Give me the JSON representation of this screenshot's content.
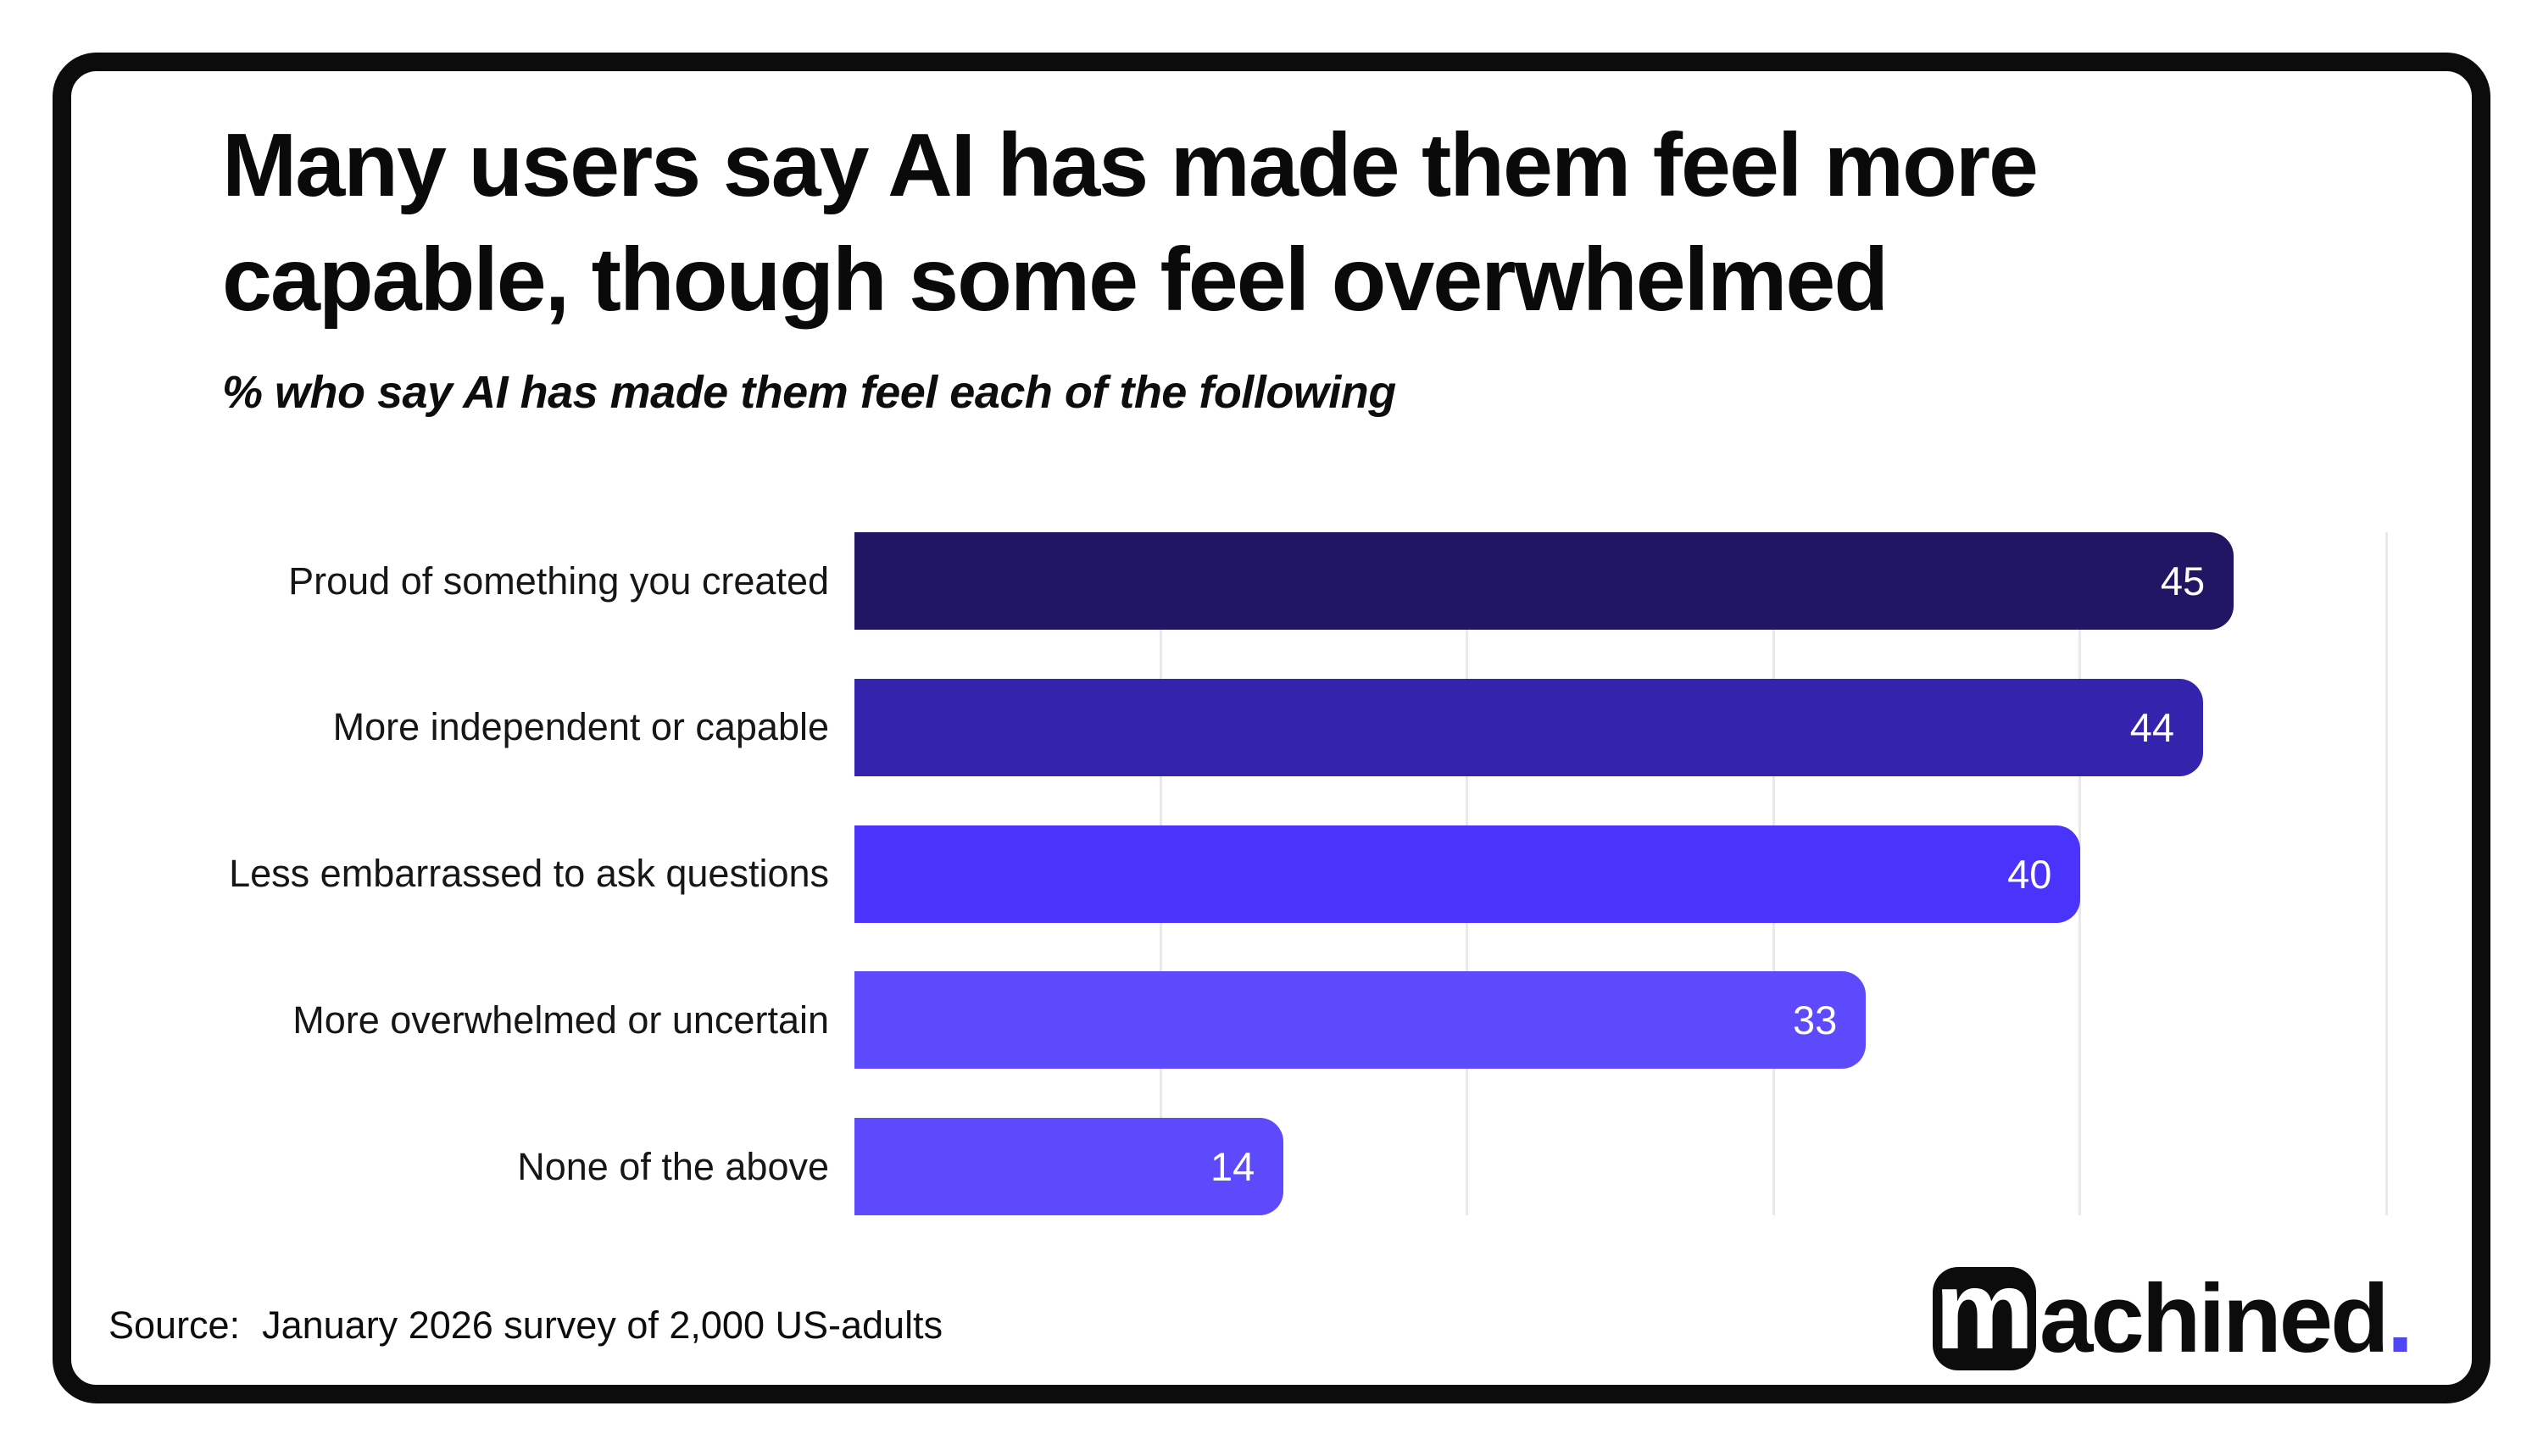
{
  "title_line1": "Many users say AI has made them feel more",
  "title_line2": "capable, though some feel overwhelmed",
  "subtitle": "% who say AI has made them feel each of the following",
  "source": {
    "label": "Source:",
    "text": "January 2026 survey of 2,000 US-adults"
  },
  "logo": {
    "mark_letter": "m",
    "wordmark_rest": "achined",
    "dot": ".",
    "dot_color": "#5145f3",
    "mark_bg": "#0c0c0c"
  },
  "chart_data": {
    "type": "bar",
    "orientation": "horizontal",
    "title": "Many users say AI has made them feel more capable, though some feel overwhelmed",
    "subtitle": "% who say AI has made them feel each of the following",
    "categories": [
      "Proud of something you created",
      "More independent or capable",
      "Less embarrassed to ask questions",
      "More overwhelmed or uncertain",
      "None of the above"
    ],
    "values": [
      45,
      44,
      40,
      33,
      14
    ],
    "bar_colors": [
      "#211663",
      "#3323ad",
      "#4a33fb",
      "#5d4afc",
      "#5d4afc"
    ],
    "value_label_color": "#ffffff",
    "value_label_position": "inside-end",
    "xlim": [
      0,
      50
    ],
    "gridlines": [
      10,
      20,
      30,
      40,
      50
    ],
    "grid_color": "#e9e9e9",
    "legend": "none"
  }
}
